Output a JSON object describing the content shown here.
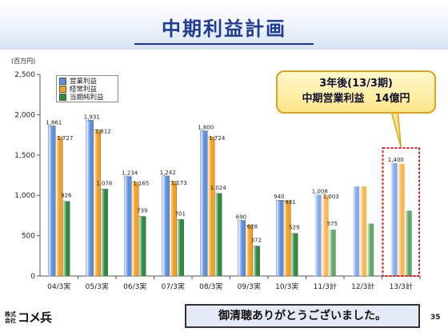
{
  "slide": {
    "title": "中期利益計画",
    "callout_line1": "3年後(13/3期)",
    "callout_line2": "中期営業利益　14億円",
    "logo_small": "株式\n会社",
    "logo_main": "コメ兵",
    "thanks": "御清聴ありがとうございました。",
    "page_number": "35"
  },
  "chart_data": {
    "type": "bar",
    "unit_label": "(百万円)",
    "ylim": [
      0,
      2500
    ],
    "yticks": [
      "0",
      "500",
      "1,000",
      "1,500",
      "2,000",
      "2,500"
    ],
    "categories": [
      "04/3実",
      "05/3実",
      "06/3実",
      "07/3実",
      "08/3実",
      "09/3実",
      "10/3実",
      "11/3計",
      "12/3計",
      "13/3計"
    ],
    "series": [
      {
        "name": "営業利益",
        "color": "#5b8fe0",
        "values": [
          1861,
          1931,
          1234,
          1242,
          1800,
          690,
          940,
          1008,
          1110,
          1400
        ],
        "labels": [
          "1,861",
          "1,931",
          "1,234",
          "1,242",
          "1,800",
          "690",
          "940",
          "1,008",
          "",
          "1,400"
        ]
      },
      {
        "name": "経常利益",
        "color": "#f5a020",
        "values": [
          1727,
          1812,
          1165,
          1173,
          1724,
          628,
          931,
          1003,
          1110,
          1390
        ],
        "labels": [
          "1,727",
          "1,812",
          "1,165",
          "1,173",
          "1,724",
          "628",
          "931",
          "1,003",
          "",
          ""
        ]
      },
      {
        "name": "当期純利益",
        "color": "#2f8a3a",
        "values": [
          926,
          1078,
          739,
          701,
          1024,
          372,
          529,
          575,
          650,
          810
        ],
        "labels": [
          "926",
          "1,078",
          "739",
          "701",
          "1,024",
          "372",
          "529",
          "575",
          "",
          ""
        ]
      }
    ],
    "planned_from_index": 7,
    "highlight_index": 9,
    "legend_position": "top-left",
    "grid": false
  }
}
